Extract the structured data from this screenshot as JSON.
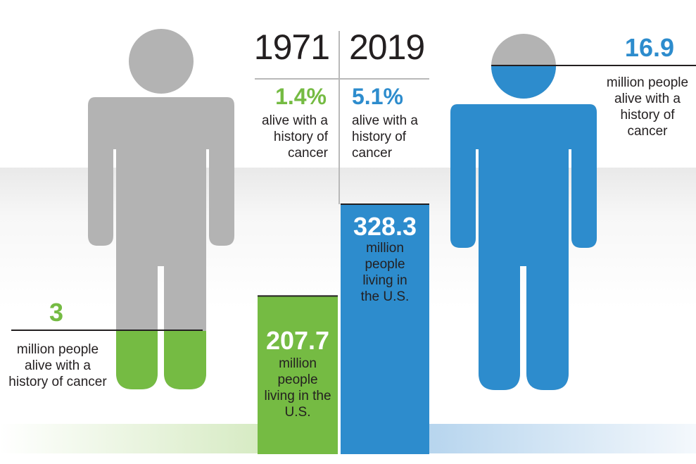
{
  "chart_data": {
    "type": "bar",
    "categories": [
      "1971",
      "2019"
    ],
    "series": [
      {
        "name": "",
        "values": [
          207.7,
          328.3
        ],
        "labels": [
          "207.7",
          "328.3"
        ],
        "captions": [
          "million people living in the U.S.",
          "million people living in the U.S."
        ]
      }
    ],
    "pictograms": [
      {
        "year": "1971",
        "survivors_value": 3,
        "survivors_label": "3",
        "survivors_caption": "million people alive with a history of cancer",
        "share_value": 1.4,
        "share_label": "1.4%",
        "share_caption": "alive with a history of cancer"
      },
      {
        "year": "2019",
        "survivors_value": 16.9,
        "survivors_label": "16.9",
        "survivors_caption": "million people alive with a history of cancer",
        "share_value": 5.1,
        "share_label": "5.1%",
        "share_caption": "alive with a history of cancer"
      }
    ],
    "bar_scale_max": 328.3,
    "colors": {
      "year_1971": "#75bb43",
      "year_2019": "#2d8ccd",
      "figure_base": "#b3b3b3"
    }
  }
}
